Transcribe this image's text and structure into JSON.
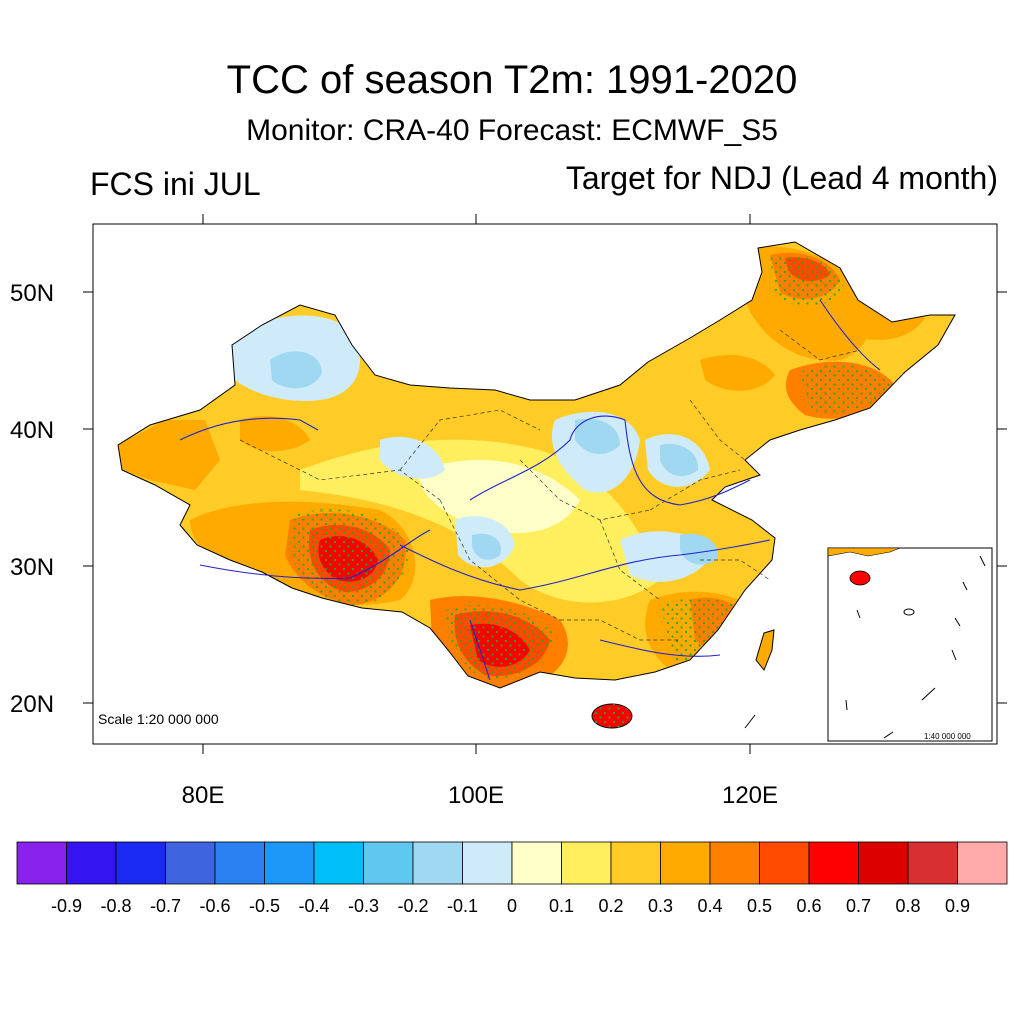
{
  "title": "TCC of season T2m: 1991-2020",
  "subtitle": "Monitor: CRA-40   Forecast: ECMWF_S5",
  "left_string": "FCS ini JUL",
  "right_string": "Target for NDJ (Lead 4 month)",
  "map": {
    "lat_labels": [
      "50N",
      "40N",
      "30N",
      "20N"
    ],
    "lon_labels": [
      "80E",
      "100E",
      "120E"
    ],
    "scale_text": "Scale 1:20 000 000",
    "inset_scale_text": "1:40 000 000"
  },
  "colorbar": {
    "labels": [
      "-0.9",
      "-0.8",
      "-0.7",
      "-0.6",
      "-0.5",
      "-0.4",
      "-0.3",
      "-0.2",
      "-0.1",
      "0",
      "0.1",
      "0.2",
      "0.3",
      "0.4",
      "0.5",
      "0.6",
      "0.7",
      "0.8",
      "0.9"
    ],
    "colors": [
      "#8a22ee",
      "#3414f0",
      "#1a2af0",
      "#3e64e0",
      "#2a80f0",
      "#1e98f8",
      "#00bff8",
      "#60c8f0",
      "#a0d8f2",
      "#cfeaf8",
      "#ffffc8",
      "#ffee5e",
      "#ffcb26",
      "#ffaa00",
      "#ff8000",
      "#ff4a00",
      "#ff0000",
      "#dd0000",
      "#d83030",
      "#ffaaaa"
    ]
  }
}
